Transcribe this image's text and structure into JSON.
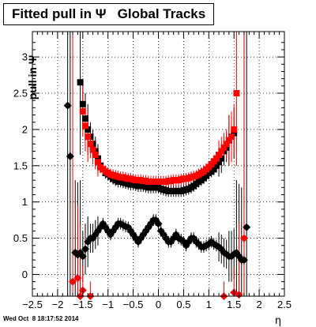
{
  "title": "Fitted pull in Ψ   Global Tracks",
  "timestamp": "Wed Oct  8 18:17:52 2014",
  "chart_data": {
    "type": "scatter",
    "title": "Fitted pull in Ψ   Global Tracks",
    "xlabel": "η",
    "ylabel": "pull in Ψ",
    "xlim": [
      -2.5,
      2.5
    ],
    "ylim": [
      -0.3,
      3.35
    ],
    "xticks": [
      -2.5,
      -2,
      -1.5,
      -1,
      -0.5,
      0,
      0.5,
      1,
      1.5,
      2,
      2.5
    ],
    "xtick_labels": [
      "−2.5",
      "−2",
      "−1.5",
      "−1",
      "−0.5",
      "0",
      "0.5",
      "1",
      "1.5",
      "2",
      "2.5"
    ],
    "yticks": [
      0,
      0.5,
      1,
      1.5,
      2,
      2.5,
      3
    ],
    "ytick_labels": [
      "0",
      "0.5",
      "1",
      "1.5",
      "2",
      "2.5",
      "3"
    ],
    "grid": true,
    "series": [
      {
        "marker": "square",
        "color": "#000000",
        "points": [
          [
            -1.55,
            2.65
          ],
          [
            -1.5,
            2.35
          ],
          [
            -1.45,
            2.15
          ],
          [
            -1.4,
            2.0
          ],
          [
            -1.35,
            1.9
          ],
          [
            -1.3,
            1.8
          ],
          [
            -1.25,
            1.7
          ],
          [
            -1.2,
            1.6
          ],
          [
            -1.15,
            1.5
          ],
          [
            -1.1,
            1.45
          ],
          [
            -1.05,
            1.4
          ],
          [
            -1.0,
            1.38
          ],
          [
            -0.95,
            1.35
          ],
          [
            -0.9,
            1.32
          ],
          [
            -0.85,
            1.3
          ],
          [
            -0.8,
            1.28
          ],
          [
            -0.75,
            1.28
          ],
          [
            -0.7,
            1.27
          ],
          [
            -0.65,
            1.26
          ],
          [
            -0.6,
            1.25
          ],
          [
            -0.55,
            1.24
          ],
          [
            -0.5,
            1.24
          ],
          [
            -0.45,
            1.23
          ],
          [
            -0.4,
            1.22
          ],
          [
            -0.35,
            1.22
          ],
          [
            -0.3,
            1.22
          ],
          [
            -0.25,
            1.21
          ],
          [
            -0.2,
            1.2
          ],
          [
            -0.15,
            1.2
          ],
          [
            -0.1,
            1.2
          ],
          [
            -0.05,
            1.2
          ],
          [
            0.0,
            1.2
          ],
          [
            0.05,
            1.18
          ],
          [
            0.1,
            1.17
          ],
          [
            0.15,
            1.16
          ],
          [
            0.2,
            1.15
          ],
          [
            0.25,
            1.15
          ],
          [
            0.3,
            1.15
          ],
          [
            0.35,
            1.15
          ],
          [
            0.4,
            1.15
          ],
          [
            0.45,
            1.15
          ],
          [
            0.5,
            1.16
          ],
          [
            0.55,
            1.17
          ],
          [
            0.6,
            1.18
          ],
          [
            0.65,
            1.2
          ],
          [
            0.7,
            1.22
          ],
          [
            0.75,
            1.25
          ],
          [
            0.8,
            1.28
          ],
          [
            0.85,
            1.3
          ],
          [
            0.9,
            1.33
          ],
          [
            0.95,
            1.36
          ],
          [
            1.0,
            1.4
          ],
          [
            1.05,
            1.42
          ],
          [
            1.1,
            1.45
          ],
          [
            1.15,
            1.5
          ],
          [
            1.2,
            1.55
          ],
          [
            1.25,
            1.6
          ],
          [
            1.3,
            1.7
          ],
          [
            1.35,
            1.75
          ],
          [
            1.4,
            1.85
          ],
          [
            1.45,
            1.9
          ],
          [
            1.5,
            1.95
          ]
        ]
      },
      {
        "marker": "square",
        "color": "#ff0000",
        "points": [
          [
            -1.5,
            2.25
          ],
          [
            -1.45,
            2.05
          ],
          [
            -1.4,
            1.9
          ],
          [
            -1.35,
            1.8
          ],
          [
            -1.3,
            1.72
          ],
          [
            -1.25,
            1.65
          ],
          [
            -1.2,
            1.55
          ],
          [
            -1.15,
            1.48
          ],
          [
            -1.1,
            1.45
          ],
          [
            -1.05,
            1.42
          ],
          [
            -1.0,
            1.4
          ],
          [
            -0.95,
            1.38
          ],
          [
            -0.9,
            1.37
          ],
          [
            -0.85,
            1.36
          ],
          [
            -0.8,
            1.35
          ],
          [
            -0.75,
            1.34
          ],
          [
            -0.7,
            1.34
          ],
          [
            -0.65,
            1.33
          ],
          [
            -0.6,
            1.32
          ],
          [
            -0.55,
            1.32
          ],
          [
            -0.5,
            1.31
          ],
          [
            -0.45,
            1.3
          ],
          [
            -0.4,
            1.3
          ],
          [
            -0.35,
            1.3
          ],
          [
            -0.3,
            1.29
          ],
          [
            -0.25,
            1.29
          ],
          [
            -0.2,
            1.28
          ],
          [
            -0.15,
            1.28
          ],
          [
            -0.1,
            1.28
          ],
          [
            -0.05,
            1.28
          ],
          [
            0.0,
            1.28
          ],
          [
            0.05,
            1.28
          ],
          [
            0.1,
            1.28
          ],
          [
            0.15,
            1.28
          ],
          [
            0.2,
            1.29
          ],
          [
            0.25,
            1.29
          ],
          [
            0.3,
            1.3
          ],
          [
            0.35,
            1.3
          ],
          [
            0.4,
            1.3
          ],
          [
            0.45,
            1.31
          ],
          [
            0.5,
            1.32
          ],
          [
            0.55,
            1.32
          ],
          [
            0.6,
            1.33
          ],
          [
            0.65,
            1.34
          ],
          [
            0.7,
            1.35
          ],
          [
            0.75,
            1.36
          ],
          [
            0.8,
            1.38
          ],
          [
            0.85,
            1.4
          ],
          [
            0.9,
            1.42
          ],
          [
            0.95,
            1.45
          ],
          [
            1.0,
            1.48
          ],
          [
            1.05,
            1.52
          ],
          [
            1.1,
            1.56
          ],
          [
            1.15,
            1.6
          ],
          [
            1.2,
            1.65
          ],
          [
            1.25,
            1.7
          ],
          [
            1.3,
            1.75
          ],
          [
            1.35,
            1.8
          ],
          [
            1.4,
            1.85
          ],
          [
            1.45,
            1.9
          ],
          [
            1.5,
            2.0
          ],
          [
            1.55,
            2.5
          ]
        ]
      },
      {
        "marker": "diamond",
        "color": "#000000",
        "points": [
          [
            -1.8,
            2.33
          ],
          [
            -1.75,
            1.63
          ],
          [
            -1.65,
            0.3
          ],
          [
            -1.6,
            0.27
          ],
          [
            -1.55,
            0.3
          ],
          [
            -1.5,
            0.25
          ],
          [
            -1.45,
            0.35
          ],
          [
            -1.4,
            0.45
          ],
          [
            -1.35,
            0.5
          ],
          [
            -1.3,
            0.5
          ],
          [
            -1.25,
            0.55
          ],
          [
            -1.2,
            0.6
          ],
          [
            -1.15,
            0.65
          ],
          [
            -1.1,
            0.7
          ],
          [
            -1.05,
            0.65
          ],
          [
            -1.0,
            0.6
          ],
          [
            -0.95,
            0.55
          ],
          [
            -0.9,
            0.6
          ],
          [
            -0.85,
            0.65
          ],
          [
            -0.8,
            0.7
          ],
          [
            -0.75,
            0.7
          ],
          [
            -0.7,
            0.68
          ],
          [
            -0.65,
            0.66
          ],
          [
            -0.6,
            0.65
          ],
          [
            -0.55,
            0.6
          ],
          [
            -0.5,
            0.55
          ],
          [
            -0.45,
            0.5
          ],
          [
            -0.4,
            0.45
          ],
          [
            -0.35,
            0.5
          ],
          [
            -0.3,
            0.55
          ],
          [
            -0.25,
            0.6
          ],
          [
            -0.2,
            0.65
          ],
          [
            -0.15,
            0.7
          ],
          [
            -0.1,
            0.75
          ],
          [
            -0.05,
            0.75
          ],
          [
            0.0,
            0.7
          ],
          [
            0.05,
            0.6
          ],
          [
            0.1,
            0.55
          ],
          [
            0.15,
            0.5
          ],
          [
            0.2,
            0.45
          ],
          [
            0.25,
            0.45
          ],
          [
            0.3,
            0.5
          ],
          [
            0.35,
            0.55
          ],
          [
            0.4,
            0.5
          ],
          [
            0.45,
            0.48
          ],
          [
            0.5,
            0.45
          ],
          [
            0.55,
            0.4
          ],
          [
            0.6,
            0.45
          ],
          [
            0.65,
            0.5
          ],
          [
            0.7,
            0.5
          ],
          [
            0.75,
            0.45
          ],
          [
            0.8,
            0.42
          ],
          [
            0.85,
            0.38
          ],
          [
            0.9,
            0.38
          ],
          [
            0.95,
            0.4
          ],
          [
            1.0,
            0.42
          ],
          [
            1.05,
            0.45
          ],
          [
            1.1,
            0.42
          ],
          [
            1.15,
            0.4
          ],
          [
            1.2,
            0.38
          ],
          [
            1.25,
            0.35
          ],
          [
            1.3,
            0.3
          ],
          [
            1.35,
            0.28
          ],
          [
            1.4,
            0.25
          ],
          [
            1.45,
            0.25
          ],
          [
            1.5,
            0.28
          ],
          [
            1.55,
            0.3
          ],
          [
            1.6,
            0.25
          ],
          [
            1.65,
            0.2
          ],
          [
            1.7,
            0.2
          ],
          [
            1.75,
            0.65
          ]
        ]
      },
      {
        "marker": "diamond",
        "color": "#ff0000",
        "points": [
          [
            -1.7,
            -0.1
          ],
          [
            -1.6,
            -0.05
          ],
          [
            -1.55,
            -0.3
          ],
          [
            -1.5,
            -0.22
          ],
          [
            -1.35,
            -0.3
          ],
          [
            1.3,
            -0.3
          ],
          [
            1.5,
            -0.25
          ],
          [
            1.6,
            -0.28
          ],
          [
            1.7,
            0.5
          ]
        ]
      }
    ]
  }
}
